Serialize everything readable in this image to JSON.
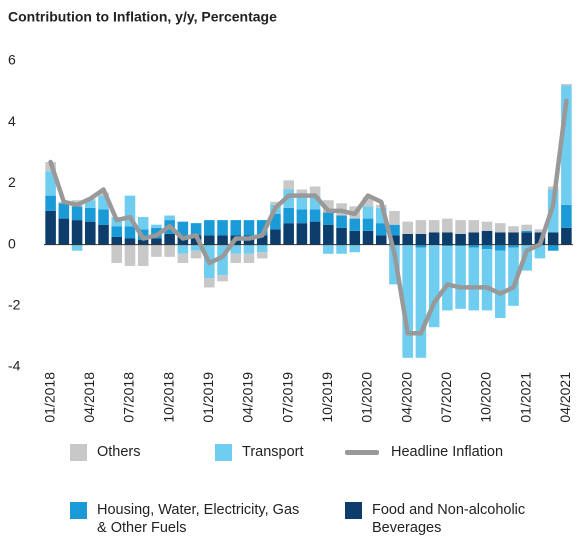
{
  "chart_data": {
    "type": "bar",
    "title": "Contribution to Inflation, y/y, Percentage",
    "categories": [
      "01/2018",
      null,
      null,
      "04/2018",
      null,
      null,
      "07/2018",
      null,
      null,
      "10/2018",
      null,
      null,
      "01/2019",
      null,
      null,
      "04/2019",
      null,
      null,
      "07/2019",
      null,
      null,
      "10/2019",
      null,
      null,
      "01/2020",
      null,
      null,
      "04/2020",
      null,
      null,
      "07/2020",
      null,
      null,
      "10/2020",
      null,
      null,
      "01/2021",
      null,
      null,
      "04/2021"
    ],
    "series": [
      {
        "name": "Food and Non-alcoholic Beverages",
        "color": "#0d3d6b",
        "values": [
          1.1,
          0.85,
          0.8,
          0.75,
          0.65,
          0.25,
          0.2,
          0.15,
          0.2,
          0.35,
          0.3,
          0.3,
          0.3,
          0.3,
          0.3,
          0.3,
          0.3,
          0.5,
          0.7,
          0.7,
          0.75,
          0.65,
          0.55,
          0.45,
          0.45,
          0.3,
          0.3,
          0.35,
          0.35,
          0.4,
          0.4,
          0.35,
          0.4,
          0.45,
          0.4,
          0.4,
          0.4,
          0.4,
          0.4,
          0.55
        ]
      },
      {
        "name": "Housing, Water, Electricity, Gas & Other Fuels",
        "color": "#1a9ad6",
        "values": [
          0.5,
          0.5,
          0.45,
          0.45,
          0.5,
          0.35,
          0.4,
          0.35,
          0.35,
          0.45,
          0.45,
          0.4,
          0.5,
          0.5,
          0.5,
          0.5,
          0.5,
          0.5,
          0.5,
          0.45,
          0.4,
          0.4,
          0.4,
          0.4,
          0.4,
          0.4,
          0.35,
          0.0,
          -0.1,
          0.0,
          -0.05,
          -0.05,
          -0.1,
          -0.15,
          -0.2,
          -0.1,
          0.05,
          0.0,
          -0.2,
          0.75
        ]
      },
      {
        "name": "Transport",
        "color": "#6fcdf0",
        "values": [
          0.8,
          0.0,
          -0.2,
          0.25,
          0.45,
          0.3,
          1.0,
          0.4,
          0.1,
          0.15,
          -0.3,
          -0.2,
          -1.1,
          -1.0,
          -0.3,
          -0.3,
          -0.25,
          0.3,
          0.6,
          0.45,
          0.45,
          -0.3,
          -0.3,
          -0.25,
          0.4,
          0.5,
          -1.3,
          -3.7,
          -3.6,
          -2.7,
          -2.1,
          -2.05,
          -2.05,
          -2.0,
          -2.2,
          -1.9,
          -0.85,
          -0.45,
          1.4,
          3.9
        ]
      },
      {
        "name": "Others",
        "color": "#c8c8c8",
        "values": [
          0.3,
          0.05,
          0.2,
          0.05,
          0.1,
          -0.6,
          -0.7,
          -0.7,
          -0.4,
          -0.4,
          -0.3,
          -0.25,
          -0.3,
          -0.2,
          -0.3,
          -0.3,
          -0.2,
          0.1,
          0.3,
          0.2,
          0.3,
          0.4,
          0.4,
          0.4,
          0.3,
          0.1,
          0.45,
          0.4,
          0.45,
          0.4,
          0.45,
          0.45,
          0.4,
          0.3,
          0.3,
          0.2,
          0.2,
          0.1,
          0.1,
          0.05
        ]
      },
      {
        "name": "Headline Inflation",
        "color": "#999999",
        "type": "line",
        "values": [
          2.7,
          1.4,
          1.3,
          1.5,
          1.8,
          0.8,
          0.9,
          0.2,
          0.3,
          0.6,
          0.2,
          0.3,
          -0.6,
          -0.4,
          0.2,
          0.2,
          0.3,
          1.2,
          1.6,
          1.6,
          1.6,
          1.1,
          1.1,
          1.0,
          1.6,
          1.4,
          -0.3,
          -2.9,
          -2.9,
          -1.9,
          -1.3,
          -1.4,
          -1.4,
          -1.4,
          -1.6,
          -1.4,
          -0.2,
          0.0,
          1.3,
          4.7
        ]
      }
    ],
    "ylim": [
      -4,
      6
    ],
    "yticks": [
      -4,
      -2,
      0,
      2,
      4,
      6
    ],
    "grid": false
  }
}
